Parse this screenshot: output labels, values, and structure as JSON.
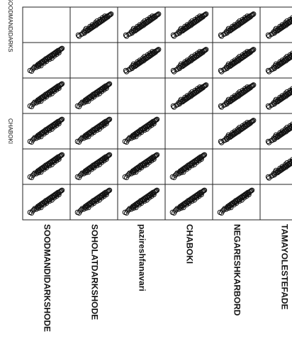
{
  "chart_data": {
    "type": "scatter",
    "subtype": "scatterplot-matrix",
    "variables": [
      "SOODMANDIDARKSHODE",
      "SOHOLATDARKSHODE",
      "pazireshfanavari",
      "CHABOKI",
      "NEGARESHKARBORD",
      "TAMAYOLESTEFADE"
    ],
    "row_axis_labels": [
      "SOODMANDIDARKS",
      "",
      "",
      "CHABOKI",
      "",
      ""
    ],
    "diagonal": "empty",
    "marker": "open-circle",
    "grid": false,
    "points": [
      [
        0.08,
        0.12
      ],
      [
        0.12,
        0.1
      ],
      [
        0.15,
        0.18
      ],
      [
        0.18,
        0.22
      ],
      [
        0.2,
        0.26
      ],
      [
        0.24,
        0.24
      ],
      [
        0.26,
        0.3
      ],
      [
        0.28,
        0.34
      ],
      [
        0.3,
        0.28
      ],
      [
        0.32,
        0.38
      ],
      [
        0.34,
        0.35
      ],
      [
        0.36,
        0.42
      ],
      [
        0.38,
        0.4
      ],
      [
        0.4,
        0.46
      ],
      [
        0.42,
        0.44
      ],
      [
        0.44,
        0.5
      ],
      [
        0.46,
        0.48
      ],
      [
        0.48,
        0.55
      ],
      [
        0.5,
        0.52
      ],
      [
        0.52,
        0.58
      ],
      [
        0.54,
        0.56
      ],
      [
        0.56,
        0.62
      ],
      [
        0.58,
        0.6
      ],
      [
        0.6,
        0.66
      ],
      [
        0.62,
        0.64
      ],
      [
        0.64,
        0.7
      ],
      [
        0.66,
        0.68
      ],
      [
        0.68,
        0.74
      ],
      [
        0.7,
        0.72
      ],
      [
        0.72,
        0.78
      ],
      [
        0.74,
        0.76
      ],
      [
        0.76,
        0.82
      ],
      [
        0.78,
        0.8
      ],
      [
        0.8,
        0.86
      ],
      [
        0.82,
        0.84
      ],
      [
        0.84,
        0.88
      ],
      [
        0.86,
        0.9
      ],
      [
        0.88,
        0.92
      ],
      [
        0.44,
        0.4
      ],
      [
        0.5,
        0.46
      ],
      [
        0.58,
        0.54
      ],
      [
        0.64,
        0.58
      ],
      [
        0.7,
        0.66
      ],
      [
        0.76,
        0.72
      ],
      [
        0.82,
        0.78
      ],
      [
        0.36,
        0.3
      ],
      [
        0.3,
        0.34
      ],
      [
        0.9,
        0.94
      ]
    ]
  }
}
